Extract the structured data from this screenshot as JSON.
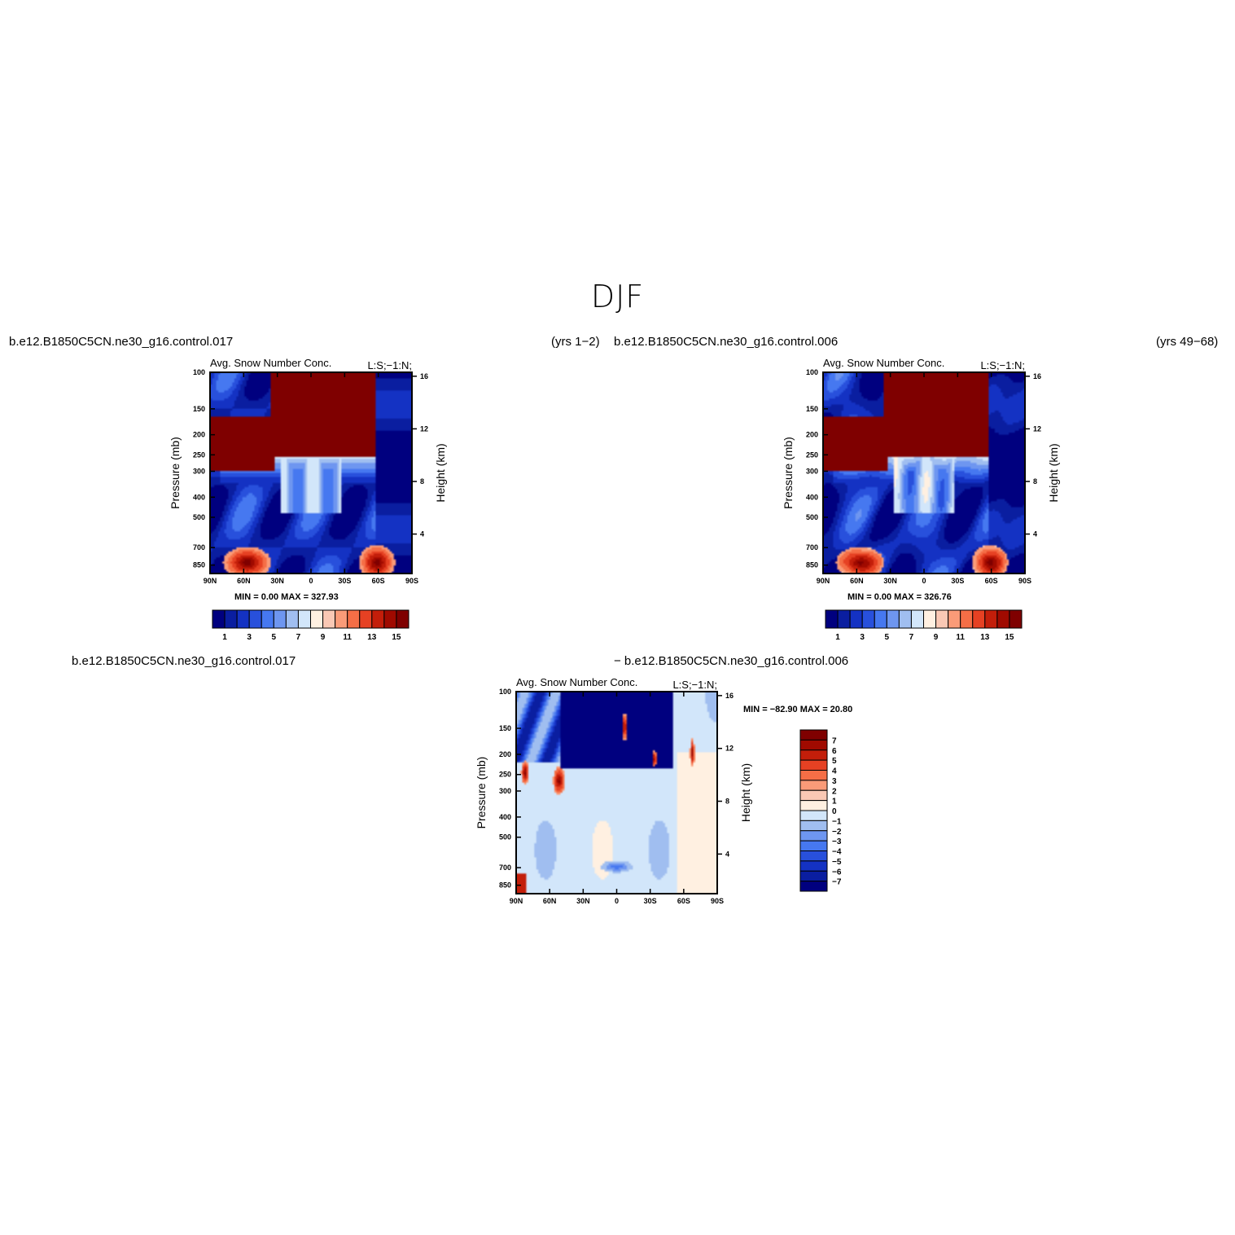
{
  "figure": {
    "title": "DJF"
  },
  "labels": {
    "top_left_case": "b.e12.B1850C5CN.ne30_g16.control.017",
    "top_left_years": "(yrs 1−2)",
    "top_right_case": "b.e12.B1850C5CN.ne30_g16.control.006",
    "top_right_years": "(yrs 49−68)",
    "bottom_case_a": "b.e12.B1850C5CN.ne30_g16.control.017",
    "bottom_case_b": "− b.e12.B1850C5CN.ne30_g16.control.006"
  },
  "colors": {
    "absolute_scale": [
      "#00007f",
      "#0a1ea0",
      "#1432c3",
      "#2850dc",
      "#4678f0",
      "#6e96f0",
      "#a0bef0",
      "#d2e6fa",
      "#fff0e1",
      "#fac8b4",
      "#fa9b78",
      "#f56e46",
      "#e64123",
      "#c31e0a",
      "#a00a00",
      "#7f0000"
    ],
    "difference_scale": [
      "#00007f",
      "#0a1ea0",
      "#1432c3",
      "#2850dc",
      "#4678f0",
      "#6e96f0",
      "#a0bef0",
      "#d2e6fa",
      "#fff0e1",
      "#fac8b4",
      "#fa9b78",
      "#f56e46",
      "#e64123",
      "#c31e0a",
      "#a00a00",
      "#7f0000"
    ]
  },
  "chart_data": [
    {
      "type": "heatmap",
      "title": "Avg. Snow Number Conc.",
      "units": "L:S;−1:N;",
      "xlabel": "",
      "ylabel": "Pressure (mb)",
      "ylabel_right": "Height (km)",
      "x_ticks": [
        "90N",
        "60N",
        "30N",
        "0",
        "30S",
        "60S",
        "90S"
      ],
      "y_ticks": [
        100,
        150,
        200,
        250,
        300,
        400,
        500,
        700,
        850
      ],
      "y_ticks_right": [
        16,
        12,
        8,
        4
      ],
      "ylim": [
        1000,
        100
      ],
      "y_scale": "log",
      "stats": {
        "min_label": "MIN =",
        "min": "0.00",
        "max_label": "MAX =",
        "max": "327.93"
      },
      "colorbar": {
        "orientation": "horizontal",
        "levels": [
          1,
          2,
          3,
          4,
          5,
          6,
          7,
          8,
          9,
          10,
          11,
          12,
          13,
          14,
          15
        ],
        "labels": [
          "1",
          "3",
          "5",
          "7",
          "9",
          "11",
          "13",
          "15"
        ]
      }
    },
    {
      "type": "heatmap",
      "title": "Avg. Snow Number Conc.",
      "units": "L:S;−1:N;",
      "xlabel": "",
      "ylabel": "Pressure (mb)",
      "ylabel_right": "Height (km)",
      "x_ticks": [
        "90N",
        "60N",
        "30N",
        "0",
        "30S",
        "60S",
        "90S"
      ],
      "y_ticks": [
        100,
        150,
        200,
        250,
        300,
        400,
        500,
        700,
        850
      ],
      "y_ticks_right": [
        16,
        12,
        8,
        4
      ],
      "ylim": [
        1000,
        100
      ],
      "y_scale": "log",
      "stats": {
        "min_label": "MIN =",
        "min": "0.00",
        "max_label": "MAX =",
        "max": "326.76"
      },
      "colorbar": {
        "orientation": "horizontal",
        "levels": [
          1,
          2,
          3,
          4,
          5,
          6,
          7,
          8,
          9,
          10,
          11,
          12,
          13,
          14,
          15
        ],
        "labels": [
          "1",
          "3",
          "5",
          "7",
          "9",
          "11",
          "13",
          "15"
        ]
      }
    },
    {
      "type": "heatmap",
      "title": "Avg. Snow Number Conc.",
      "units": "L:S;−1:N;",
      "xlabel": "",
      "ylabel": "Pressure (mb)",
      "ylabel_right": "Height (km)",
      "x_ticks": [
        "90N",
        "60N",
        "30N",
        "0",
        "30S",
        "60S",
        "90S"
      ],
      "y_ticks": [
        100,
        150,
        200,
        250,
        300,
        400,
        500,
        700,
        850
      ],
      "y_ticks_right": [
        16,
        12,
        8,
        4
      ],
      "ylim": [
        1000,
        100
      ],
      "y_scale": "log",
      "stats": {
        "min_label": "MIN =",
        "min": "−82.90",
        "max_label": "MAX =",
        "max": "20.80"
      },
      "colorbar": {
        "orientation": "vertical",
        "levels": [
          -7,
          -6,
          -5,
          -4,
          -3,
          -2,
          -1,
          0,
          1,
          2,
          3,
          4,
          5,
          6,
          7
        ],
        "labels": [
          "7",
          "6",
          "5",
          "4",
          "3",
          "2",
          "1",
          "0",
          "−1",
          "−2",
          "−3",
          "−4",
          "−5",
          "−6",
          "−7"
        ]
      }
    }
  ]
}
